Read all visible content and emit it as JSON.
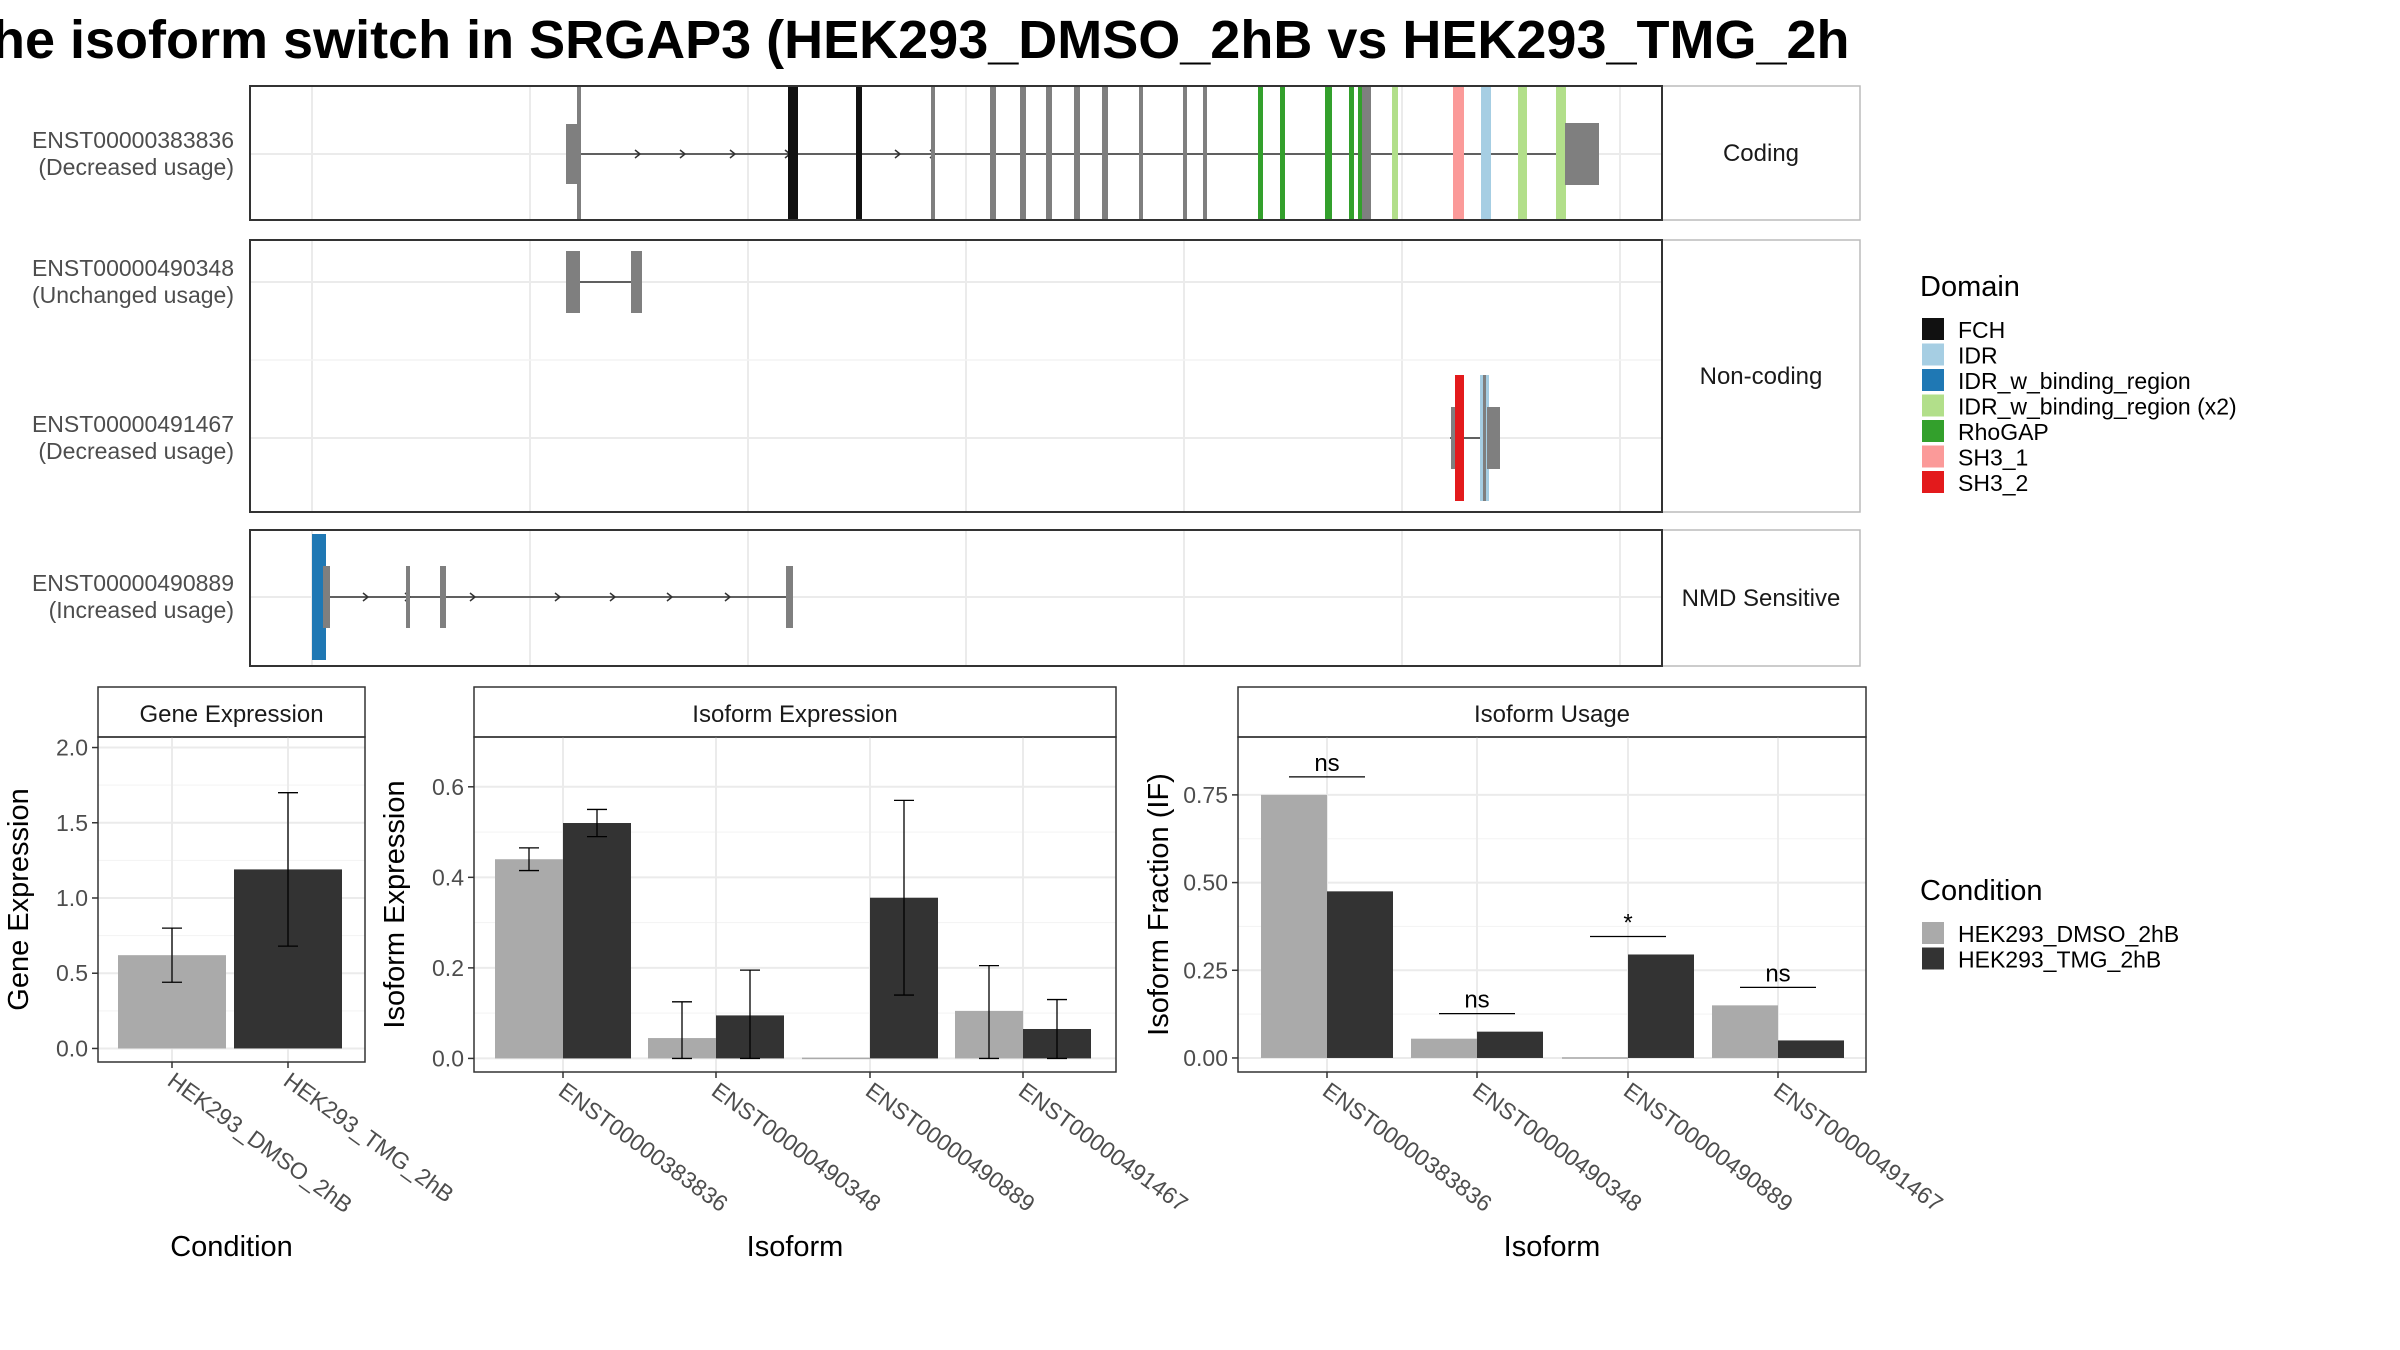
{
  "title": "he isoform switch in SRGAP3 (HEK293_DMSO_2hB vs HEK293_TMG_2h",
  "colors": {
    "exon": "#7f7f7f",
    "FCH": "#111111",
    "IDR": "#a6cee3",
    "IDR_w_binding_region": "#1f78b4",
    "IDR_w_binding_region (x2)": "#b2df8a",
    "RhoGAP": "#33a02c",
    "SH3_1": "#fb9a99",
    "SH3_2": "#e31a1c",
    "condition_dmso": "#aaaaaa",
    "condition_tmg": "#333333"
  },
  "transcripts": {
    "facets": [
      {
        "label": "Coding",
        "rows": [
          {
            "id": "ENST00000383836",
            "usage": "(Decreased usage)"
          }
        ]
      },
      {
        "label": "Non-coding",
        "rows": [
          {
            "id": "ENST00000490348",
            "usage": "(Unchanged usage)"
          },
          {
            "id": "ENST00000491467",
            "usage": "(Decreased usage)"
          }
        ]
      },
      {
        "label": "NMD Sensitive",
        "rows": [
          {
            "id": "ENST00000490889",
            "usage": "(Increased usage)"
          }
        ]
      }
    ]
  },
  "legend_domain": {
    "title": "Domain",
    "items": [
      "FCH",
      "IDR",
      "IDR_w_binding_region",
      "IDR_w_binding_region (x2)",
      "RhoGAP",
      "SH3_1",
      "SH3_2"
    ]
  },
  "legend_condition": {
    "title": "Condition",
    "items": [
      "HEK293_DMSO_2hB",
      "HEK293_TMG_2hB"
    ]
  },
  "chart_data": [
    {
      "type": "bar",
      "title": "Gene Expression",
      "xlabel": "Condition",
      "ylabel": "Gene Expression",
      "categories": [
        "HEK293_DMSO_2hB",
        "HEK293_TMG_2hB"
      ],
      "values": [
        0.62,
        1.19
      ],
      "error": [
        [
          0.44,
          0.8
        ],
        [
          0.68,
          1.7
        ]
      ],
      "ylim": [
        -0.09,
        2.07
      ],
      "yticks": [
        "0.0",
        "0.5",
        "1.0",
        "1.5",
        "2.0"
      ],
      "grid": true
    },
    {
      "type": "bar",
      "title": "Isoform Expression",
      "xlabel": "Isoform",
      "ylabel": "Isoform Expression",
      "categories": [
        "ENST00000383836",
        "ENST00000490348",
        "ENST00000490889",
        "ENST00000491467"
      ],
      "series": [
        {
          "name": "HEK293_DMSO_2hB",
          "values": [
            0.44,
            0.045,
            0.0,
            0.105
          ],
          "error": [
            [
              0.415,
              0.465
            ],
            [
              0.0,
              0.125
            ],
            [
              0.0,
              0.0
            ],
            [
              0.0,
              0.205
            ]
          ]
        },
        {
          "name": "HEK293_TMG_2hB",
          "values": [
            0.52,
            0.095,
            0.355,
            0.065
          ],
          "error": [
            [
              0.49,
              0.55
            ],
            [
              0.0,
              0.195
            ],
            [
              0.14,
              0.57
            ],
            [
              0.0,
              0.13
            ]
          ]
        }
      ],
      "ylim": [
        -0.03,
        0.71
      ],
      "yticks": [
        "0.0",
        "0.2",
        "0.4",
        "0.6"
      ],
      "grid": true
    },
    {
      "type": "bar",
      "title": "Isoform Usage",
      "xlabel": "Isoform",
      "ylabel": "Isoform Fraction (IF)",
      "categories": [
        "ENST00000383836",
        "ENST00000490348",
        "ENST00000490889",
        "ENST00000491467"
      ],
      "series": [
        {
          "name": "HEK293_DMSO_2hB",
          "values": [
            0.75,
            0.055,
            0.0,
            0.15
          ]
        },
        {
          "name": "HEK293_TMG_2hB",
          "values": [
            0.475,
            0.075,
            0.295,
            0.05
          ]
        }
      ],
      "significance": [
        "ns",
        "ns",
        "*",
        "ns"
      ],
      "ylim": [
        -0.04,
        0.915
      ],
      "yticks": [
        "0.00",
        "0.25",
        "0.50",
        "0.75"
      ],
      "grid": true
    }
  ]
}
